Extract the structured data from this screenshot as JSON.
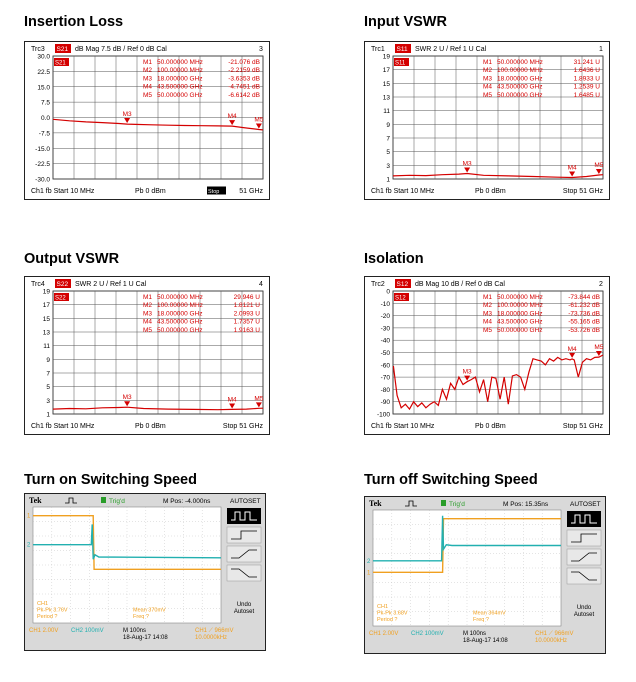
{
  "charts": [
    {
      "title": "Insertion Loss",
      "header": {
        "trc": "Trc3",
        "param": "S21",
        "fmt": "dB Mag",
        "scale": "7.5 dB /",
        "ref": "Ref 0 dB",
        "cal": "Cal",
        "num": "3"
      },
      "marker_table": [
        {
          "name": "M1",
          "freq": "50.000000 MHz",
          "val": "-21.076 dB"
        },
        {
          "name": "M2",
          "freq": "100.00000 MHz",
          "val": "-2.2159 dB"
        },
        {
          "name": "M3",
          "freq": "18.000000 GHz",
          "val": "-3.6353 dB"
        },
        {
          "name": "M4",
          "freq": "43.500000 GHz",
          "val": "-4.7451 dB"
        },
        {
          "name": "M5",
          "freq": "50.000000 GHz",
          "val": "-6.6142 dB"
        }
      ],
      "ticks": [
        "30.0",
        "22.5",
        "15.0",
        "7.5",
        "0.0",
        "-7.5",
        "-15.0",
        "-22.5",
        "-30.0"
      ],
      "footer": {
        "left": "Ch1  fb  Start  10 MHz",
        "mid": "Pb  0 dBm",
        "right": "51 GHz",
        "badge": "Stop"
      },
      "chart_data": {
        "type": "line",
        "x": [
          0,
          4,
          8,
          12,
          16,
          18,
          20,
          24,
          28,
          32,
          36,
          40,
          43.5,
          46,
          50,
          51
        ],
        "y": [
          -1.0,
          -1.8,
          -2.4,
          -2.8,
          -3.3,
          -3.6,
          -3.8,
          -4.0,
          -4.2,
          -4.4,
          -4.5,
          -4.6,
          -4.7,
          -5.5,
          -6.6,
          -6.8
        ],
        "ylim": [
          -33.75,
          33.75
        ],
        "xlim": [
          0,
          51
        ],
        "markers": [
          {
            "name": "M3",
            "x": 18
          },
          {
            "name": "M4",
            "x": 43.5
          },
          {
            "name": "M5",
            "x": 50
          }
        ]
      }
    },
    {
      "title": "Input VSWR",
      "header": {
        "trc": "Trc1",
        "param": "S11",
        "fmt": "SWR",
        "scale": "2 U /",
        "ref": "Ref 1 U",
        "cal": "Cal",
        "num": "1"
      },
      "marker_table": [
        {
          "name": "M1",
          "freq": "50.000000 MHz",
          "val": "31.241 U"
        },
        {
          "name": "M2",
          "freq": "100.00000 MHz",
          "val": "1.6436 U"
        },
        {
          "name": "M3",
          "freq": "18.000000 GHz",
          "val": "1.8933 U"
        },
        {
          "name": "M4",
          "freq": "43.500000 GHz",
          "val": "1.2539 U"
        },
        {
          "name": "M5",
          "freq": "50.000000 GHz",
          "val": "1.6485 U"
        }
      ],
      "ticks": [
        "19",
        "17",
        "15",
        "13",
        "11",
        "9",
        "7",
        "5",
        "3",
        "1"
      ],
      "footer": {
        "left": "Ch1  fb  Start  10 MHz",
        "mid": "Pb  0 dBm",
        "right": "Stop  51 GHz",
        "badge": ""
      },
      "chart_data": {
        "type": "line",
        "x": [
          0,
          4,
          8,
          12,
          16,
          18,
          22,
          28,
          34,
          40,
          43.5,
          47,
          50,
          51
        ],
        "y": [
          1.5,
          1.6,
          1.55,
          1.7,
          1.8,
          1.89,
          1.6,
          1.5,
          1.4,
          1.3,
          1.25,
          1.4,
          1.65,
          1.7
        ],
        "ylim": [
          1,
          21
        ],
        "xlim": [
          0,
          51
        ],
        "markers": [
          {
            "name": "M3",
            "x": 18
          },
          {
            "name": "M4",
            "x": 43.5
          },
          {
            "name": "M5",
            "x": 50
          }
        ]
      }
    },
    {
      "title": "Output VSWR",
      "header": {
        "trc": "Trc4",
        "param": "S22",
        "fmt": "SWR",
        "scale": "2 U /",
        "ref": "Ref 1 U",
        "cal": "Cal",
        "num": "4"
      },
      "marker_table": [
        {
          "name": "M1",
          "freq": "50.000000 MHz",
          "val": "29.946 U"
        },
        {
          "name": "M2",
          "freq": "100.00000 MHz",
          "val": "1.8121 U"
        },
        {
          "name": "M3",
          "freq": "18.000000 GHz",
          "val": "2.0993 U"
        },
        {
          "name": "M4",
          "freq": "43.500000 GHz",
          "val": "1.7357 U"
        },
        {
          "name": "M5",
          "freq": "50.000000 GHz",
          "val": "1.9163 U"
        }
      ],
      "ticks": [
        "19",
        "17",
        "15",
        "13",
        "11",
        "9",
        "7",
        "5",
        "3",
        "1"
      ],
      "footer": {
        "left": "Ch1  fb  Start  10 MHz",
        "mid": "Pb  0 dBm",
        "right": "Stop  51 GHz",
        "badge": ""
      },
      "chart_data": {
        "type": "line",
        "x": [
          0,
          4,
          8,
          12,
          16,
          18,
          22,
          28,
          34,
          40,
          43.5,
          47,
          50,
          51
        ],
        "y": [
          1.8,
          1.9,
          1.85,
          2.0,
          2.05,
          2.1,
          1.9,
          1.8,
          1.75,
          1.7,
          1.74,
          1.8,
          1.92,
          1.95
        ],
        "ylim": [
          1,
          21
        ],
        "xlim": [
          0,
          51
        ],
        "markers": [
          {
            "name": "M3",
            "x": 18
          },
          {
            "name": "M4",
            "x": 43.5
          },
          {
            "name": "M5",
            "x": 50
          }
        ]
      }
    },
    {
      "title": "Isolation",
      "header": {
        "trc": "Trc2",
        "param": "S12",
        "fmt": "dB Mag",
        "scale": "10 dB /",
        "ref": "Ref 0 dB",
        "cal": "Cal",
        "num": "2"
      },
      "marker_table": [
        {
          "name": "M1",
          "freq": "50.000000 MHz",
          "val": "-73.844 dB"
        },
        {
          "name": "M2",
          "freq": "100.00000 MHz",
          "val": "-61.232 dB"
        },
        {
          "name": "M3",
          "freq": "18.000000 GHz",
          "val": "-73.736 dB"
        },
        {
          "name": "M4",
          "freq": "43.500000 GHz",
          "val": "-55.165 dB"
        },
        {
          "name": "M5",
          "freq": "50.000000 GHz",
          "val": "-53.726 dB"
        }
      ],
      "ticks": [
        "0",
        "-10",
        "-20",
        "-30",
        "-40",
        "-50",
        "-60",
        "-70",
        "-80",
        "-90",
        "-100"
      ],
      "footer": {
        "left": "Ch1  fb  Start  10 MHz",
        "mid": "Pb  0 dBm",
        "right": "Stop  51 GHz",
        "badge": ""
      },
      "chart_data": {
        "type": "line",
        "x": [
          0.1,
          1,
          2,
          3,
          4,
          5,
          6,
          7,
          8,
          9,
          10,
          11,
          12,
          13,
          14,
          15,
          16,
          17,
          18,
          19,
          20,
          21,
          22,
          23,
          24,
          25,
          26,
          27,
          28,
          29,
          30,
          31,
          32,
          33,
          34,
          35,
          36,
          37,
          38,
          39,
          40,
          41,
          42,
          43,
          43.5,
          44,
          45,
          46,
          47,
          48,
          49,
          50,
          51
        ],
        "y": [
          -61,
          -85,
          -95,
          -92,
          -96,
          -90,
          -94,
          -91,
          -95,
          -92,
          -90,
          -93,
          -80,
          -88,
          -75,
          -80,
          -70,
          -76,
          -73.7,
          -72,
          -70,
          -82,
          -72,
          -90,
          -70,
          -71,
          -88,
          -70,
          -92,
          -69,
          -68,
          -70,
          -80,
          -66,
          -55,
          -56,
          -57,
          -60,
          -55,
          -57,
          -54,
          -56,
          -55,
          -56,
          -55.2,
          -56,
          -70,
          -58,
          -55,
          -56,
          -54,
          -53.7,
          -52
        ],
        "ylim": [
          -100,
          0
        ],
        "xlim": [
          0,
          51
        ],
        "markers": [
          {
            "name": "M3",
            "x": 18
          },
          {
            "name": "M4",
            "x": 43.5
          },
          {
            "name": "M5",
            "x": 50
          }
        ]
      }
    }
  ],
  "scopes": [
    {
      "title": "Turn on Switching Speed",
      "brand": "Tek",
      "trig": "Trig'd",
      "mpos": "M Pos: -4.000ns",
      "autoset": "AUTOSET",
      "undo": "Undo\nAutoset",
      "meas": [
        "CH1",
        "Pk-Pk 3.76V",
        "Period ?"
      ],
      "meas2": [
        "Mean 370mV",
        "Freq ?"
      ],
      "bottom": {
        "ch1": "CH1  2.00V",
        "ch2": "CH2  100mV",
        "time": "M 100ns",
        "date": "18-Aug-17 14:08",
        "trig": "CH1 ⟋ 966mV",
        "freq": "10.0000kHz"
      },
      "chart_data": {
        "type": "line",
        "series": [
          {
            "name": "CH1",
            "points": [
              [
                0,
                7.4
              ],
              [
                3.2,
                7.4
              ],
              [
                3.25,
                3.7
              ],
              [
                10,
                3.7
              ]
            ]
          },
          {
            "name": "CH2",
            "points": [
              [
                0,
                5.4
              ],
              [
                3.1,
                5.4
              ],
              [
                3.15,
                6.8
              ],
              [
                3.2,
                4.4
              ],
              [
                3.3,
                4.7
              ],
              [
                3.5,
                4.55
              ],
              [
                10,
                4.5
              ]
            ]
          }
        ]
      }
    },
    {
      "title": "Turn off Switching Speed",
      "brand": "Tek",
      "trig": "Trig'd",
      "mpos": "M Pos: 15.35ns",
      "autoset": "AUTOSET",
      "undo": "Undo\nAutoset",
      "meas": [
        "CH1",
        "Pk-Pk 3.68V",
        "Period ?"
      ],
      "meas2": [
        "Mean 364mV",
        "Freq ?"
      ],
      "bottom": {
        "ch1": "CH1  2.00V",
        "ch2": "CH2  100mV",
        "time": "M 100ns",
        "date": "18-Aug-17 14:08",
        "trig": "CH1 ⟋ 966mV",
        "freq": "10.0000kHz"
      },
      "chart_data": {
        "type": "line",
        "series": [
          {
            "name": "CH1",
            "points": [
              [
                0,
                3.7
              ],
              [
                3.7,
                3.7
              ],
              [
                3.75,
                7.4
              ],
              [
                10,
                7.4
              ]
            ]
          },
          {
            "name": "CH2",
            "points": [
              [
                0,
                4.5
              ],
              [
                3.65,
                4.5
              ],
              [
                3.7,
                7.6
              ],
              [
                3.75,
                5.3
              ],
              [
                3.9,
                5.6
              ],
              [
                4.2,
                5.55
              ],
              [
                10,
                5.55
              ]
            ]
          }
        ]
      }
    }
  ]
}
